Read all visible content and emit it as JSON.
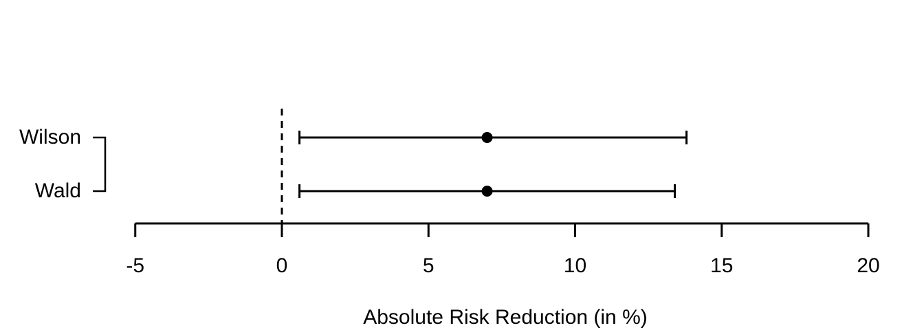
{
  "figure": {
    "background": "#ffffff"
  },
  "chart_data": {
    "type": "scatter",
    "subtype": "horizontal-errorbar-forest-plot",
    "title": "",
    "xlabel": "Absolute Risk Reduction (in %)",
    "ylabel": "",
    "xlim": [
      -5,
      20
    ],
    "x_tick_labels": [
      "-5",
      "0",
      "5",
      "10",
      "15",
      "20"
    ],
    "x_tick_values": [
      -5,
      0,
      5,
      10,
      15,
      20
    ],
    "categories": [
      "Wilson",
      "Wald"
    ],
    "series": [
      {
        "name": "Wilson",
        "estimate": 7.0,
        "ci_lower": 0.6,
        "ci_upper": 13.8
      },
      {
        "name": "Wald",
        "estimate": 7.0,
        "ci_lower": 0.6,
        "ci_upper": 13.4
      }
    ],
    "reference_line": {
      "x": 0,
      "style": "dashed"
    },
    "grid": false,
    "legend": null,
    "colors": {
      "foreground": "#000000",
      "background": "#ffffff"
    }
  }
}
